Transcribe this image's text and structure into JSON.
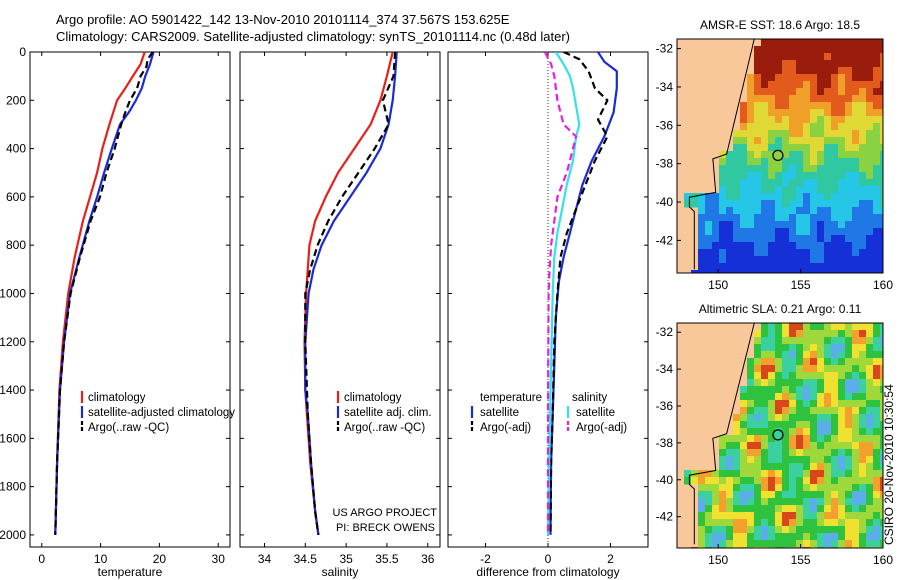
{
  "header": {
    "line1": "Argo profile: AO 5901422_142 13-Nov-2010 20101114_374 37.567S 153.625E",
    "line2": "Climatology: CARS2009. Satellite-adjusted climatology: synTS_20101114.nc (0.48d later)"
  },
  "credit": "CSIRO 20-Nov-2010 10:30:54",
  "colors": {
    "climatology": "#e8201a",
    "satellite": "#1a2bd6",
    "argo": "#000000",
    "sal_satellite": "#33e3e8",
    "sal_argo": "#e81ee0",
    "land": "#f9c89a"
  },
  "chart_data": [
    {
      "type": "line",
      "xlabel": "temperature",
      "xlim": [
        -2,
        32
      ],
      "ylim": [
        2050,
        0
      ],
      "xticks": [
        0,
        10,
        20,
        30
      ],
      "yticks": [
        0,
        200,
        400,
        600,
        800,
        1000,
        1200,
        1400,
        1600,
        1800,
        2000
      ],
      "legend": [
        "climatology",
        "satellite-adjusted climatology",
        "Argo(..raw -QC)"
      ],
      "series": [
        {
          "name": "climatology",
          "style": "solid",
          "color": "#e8201a",
          "x": [
            17.5,
            16.8,
            15.5,
            14.2,
            12.8,
            11.5,
            10.3,
            9.4,
            8.2,
            7.0,
            5.6,
            4.5,
            3.6,
            3.0,
            2.6,
            2.3
          ],
          "y": [
            0,
            50,
            100,
            150,
            200,
            300,
            400,
            500,
            600,
            700,
            850,
            1000,
            1200,
            1400,
            1700,
            2000
          ]
        },
        {
          "name": "satellite-adjusted climatology",
          "style": "solid",
          "color": "#1a2bd6",
          "x": [
            19.0,
            18.4,
            17.6,
            17.0,
            16.0,
            14.8,
            13.3,
            11.9,
            10.6,
            9.4,
            8.1,
            6.4,
            4.8,
            3.8,
            3.1,
            2.6,
            2.3
          ],
          "y": [
            0,
            50,
            100,
            150,
            200,
            250,
            300,
            400,
            500,
            600,
            700,
            850,
            1000,
            1200,
            1400,
            1700,
            2000
          ]
        },
        {
          "name": "Argo(..raw -QC)",
          "style": "dashed",
          "color": "#000000",
          "x": [
            18.9,
            18.0,
            17.8,
            16.8,
            16.2,
            15.0,
            14.2,
            13.5,
            12.4,
            11.0,
            9.9,
            8.3,
            6.5,
            4.9,
            3.8,
            3.1,
            2.6,
            2.3
          ],
          "y": [
            0,
            30,
            60,
            100,
            150,
            200,
            250,
            300,
            400,
            500,
            600,
            700,
            850,
            1000,
            1200,
            1400,
            1700,
            2000
          ]
        }
      ]
    },
    {
      "type": "line",
      "xlabel": "salinity",
      "xlim": [
        33.7,
        36.15
      ],
      "ylim": [
        2050,
        0
      ],
      "xticks": [
        34,
        34.5,
        35,
        35.5,
        36
      ],
      "legend": [
        "climatology",
        "satellite adj. clim.",
        "Argo(..raw -QC)"
      ],
      "annotation": [
        "US ARGO PROJECT",
        "PI: BRECK OWENS"
      ],
      "series": [
        {
          "name": "climatology",
          "style": "solid",
          "color": "#e8201a",
          "x": [
            35.57,
            35.5,
            35.42,
            35.3,
            35.1,
            34.9,
            34.75,
            34.62,
            34.55,
            34.51,
            34.49,
            34.5,
            34.52,
            34.56,
            34.62,
            34.66
          ],
          "y": [
            0,
            100,
            200,
            300,
            400,
            500,
            600,
            700,
            800,
            1000,
            1200,
            1400,
            1500,
            1700,
            1900,
            2000
          ]
        },
        {
          "name": "satellite adj. clim.",
          "style": "solid",
          "color": "#1a2bd6",
          "x": [
            35.62,
            35.6,
            35.57,
            35.52,
            35.42,
            35.25,
            35.05,
            34.85,
            34.7,
            34.6,
            34.54,
            34.5,
            34.5,
            34.53,
            34.57,
            34.62,
            34.66
          ],
          "y": [
            0,
            100,
            200,
            300,
            400,
            500,
            600,
            700,
            800,
            900,
            1000,
            1200,
            1400,
            1500,
            1700,
            1900,
            2000
          ]
        },
        {
          "name": "Argo(..raw -QC)",
          "style": "dashed",
          "color": "#000000",
          "x": [
            35.6,
            35.58,
            35.45,
            35.52,
            35.35,
            35.15,
            34.95,
            34.78,
            34.65,
            34.56,
            34.5,
            34.5,
            34.53,
            34.57,
            34.62,
            34.66
          ],
          "y": [
            0,
            100,
            200,
            300,
            400,
            500,
            600,
            700,
            800,
            900,
            1000,
            1200,
            1500,
            1700,
            1900,
            2000
          ]
        }
      ]
    },
    {
      "type": "line",
      "xlabel": "difference from climatology",
      "xlim": [
        -3.2,
        3.2
      ],
      "ylim": [
        2050,
        0
      ],
      "xticks": [
        -2,
        0,
        2
      ],
      "legend_groups": [
        {
          "title": "temperature",
          "entries": [
            "satellite",
            "Argo(-adj)"
          ]
        },
        {
          "title": "salinity",
          "entries": [
            "satellite",
            "Argo(-adj)"
          ]
        }
      ],
      "series": [
        {
          "name": "temperature satellite",
          "style": "solid",
          "color": "#1a2bd6",
          "x": [
            1.6,
            1.8,
            2.2,
            2.2,
            2.1,
            1.8,
            1.4,
            1.1,
            0.9,
            0.7,
            0.5,
            0.35,
            0.25,
            0.2,
            0.15,
            0.1,
            0.08
          ],
          "y": [
            0,
            40,
            80,
            150,
            250,
            350,
            450,
            550,
            650,
            750,
            850,
            950,
            1100,
            1300,
            1500,
            1700,
            2000
          ]
        },
        {
          "name": "temperature Argo(-adj)",
          "style": "dashed",
          "color": "#000000",
          "x": [
            0.5,
            1.0,
            1.3,
            1.5,
            1.9,
            1.6,
            1.9,
            1.5,
            1.2,
            0.9,
            0.6,
            0.4,
            0.3,
            0.2,
            0.15,
            0.1,
            0.08
          ],
          "y": [
            0,
            30,
            80,
            150,
            200,
            280,
            350,
            450,
            550,
            650,
            750,
            850,
            1000,
            1200,
            1500,
            1700,
            2000
          ]
        },
        {
          "name": "salinity satellite",
          "style": "solid",
          "color": "#33e3e8",
          "x": [
            0.25,
            0.5,
            0.7,
            0.8,
            1.0,
            0.9,
            0.8,
            0.6,
            0.45,
            0.3,
            0.2,
            0.15,
            0.1,
            0.05,
            0.0
          ],
          "y": [
            0,
            50,
            100,
            150,
            300,
            350,
            450,
            550,
            650,
            750,
            850,
            1000,
            1300,
            1600,
            2000
          ]
        },
        {
          "name": "salinity Argo(-adj)",
          "style": "dashed",
          "color": "#e81ee0",
          "x": [
            -0.1,
            0.1,
            0.2,
            0.3,
            0.5,
            0.9,
            0.6,
            0.3,
            0.2,
            0.1,
            0.05,
            0.02,
            0.0,
            0.0
          ],
          "y": [
            0,
            50,
            100,
            200,
            300,
            350,
            500,
            600,
            700,
            800,
            900,
            1000,
            1500,
            2000
          ]
        }
      ]
    },
    {
      "type": "heatmap",
      "title": "AMSR-E SST: 18.6 Argo: 18.5",
      "xlim": [
        147.5,
        160
      ],
      "ylim": [
        -43.7,
        -31.5
      ],
      "xticks": [
        150,
        155,
        160
      ],
      "yticks": [
        -32,
        -34,
        -36,
        -38,
        -40,
        -42
      ],
      "marker": {
        "lon": 153.625,
        "lat": -37.567
      }
    },
    {
      "type": "heatmap",
      "title": "Altimetric SLA: 0.21 Argo: 0.11",
      "xlim": [
        147.5,
        160
      ],
      "ylim": [
        -43.7,
        -31.5
      ],
      "xticks": [
        150,
        155,
        160
      ],
      "yticks": [
        -32,
        -34,
        -36,
        -38,
        -40,
        -42
      ],
      "marker": {
        "lon": 153.625,
        "lat": -37.567
      }
    }
  ]
}
